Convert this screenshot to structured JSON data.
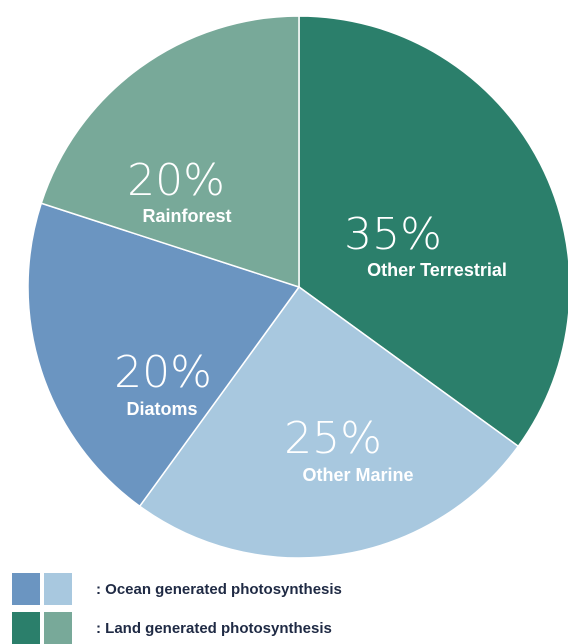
{
  "chart_data": {
    "type": "pie",
    "slices": [
      {
        "label": "Other Terrestrial",
        "pct_label": "35%",
        "value": 35,
        "color": "#2b7f6b"
      },
      {
        "label": "Other Marine",
        "pct_label": "25%",
        "value": 25,
        "color": "#a8c8df"
      },
      {
        "label": "Diatoms",
        "pct_label": "20%",
        "value": 20,
        "color": "#6b95c1"
      },
      {
        "label": "Rainforest",
        "pct_label": "20%",
        "value": 20,
        "color": "#78a999"
      }
    ],
    "legend": [
      {
        "text": ": Ocean generated photosynthesis",
        "colors": [
          "#6b95c1",
          "#a8c8df"
        ]
      },
      {
        "text": ": Land generated photosynthesis",
        "colors": [
          "#2b7f6b",
          "#78a999"
        ]
      }
    ]
  }
}
